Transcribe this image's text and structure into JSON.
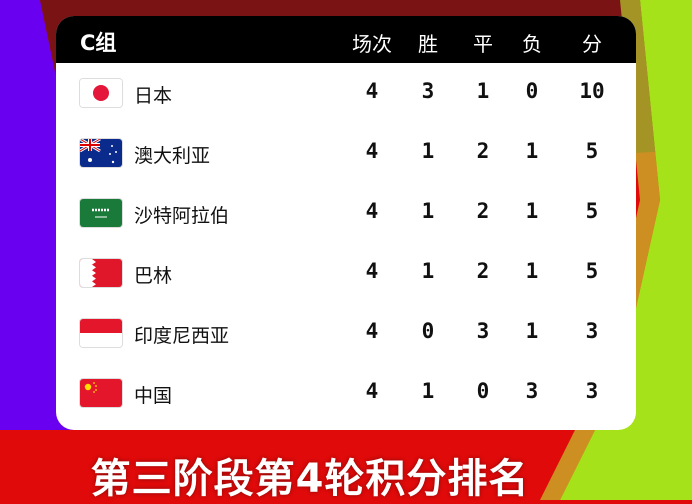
{
  "colors": {
    "purple": "#6a00f0",
    "dark_red": "#7a1414",
    "red": "#e00a0a",
    "green": "#a6e21a"
  },
  "header": {
    "group": "C组",
    "columns": [
      "场次",
      "胜",
      "平",
      "负",
      "分"
    ]
  },
  "rows": [
    {
      "flag": "japan-flag",
      "team": "日本",
      "played": "4",
      "won": "3",
      "drawn": "1",
      "lost": "0",
      "points": "10"
    },
    {
      "flag": "australia-flag",
      "team": "澳大利亚",
      "played": "4",
      "won": "1",
      "drawn": "2",
      "lost": "1",
      "points": "5"
    },
    {
      "flag": "saudi-arabia-flag",
      "team": "沙特阿拉伯",
      "played": "4",
      "won": "1",
      "drawn": "2",
      "lost": "1",
      "points": "5"
    },
    {
      "flag": "bahrain-flag",
      "team": "巴林",
      "played": "4",
      "won": "1",
      "drawn": "2",
      "lost": "1",
      "points": "5"
    },
    {
      "flag": "indonesia-flag",
      "team": "印度尼西亚",
      "played": "4",
      "won": "0",
      "drawn": "3",
      "lost": "1",
      "points": "3"
    },
    {
      "flag": "china-flag",
      "team": "中国",
      "played": "4",
      "won": "1",
      "drawn": "0",
      "lost": "3",
      "points": "3"
    }
  ],
  "caption": "第三阶段第4轮积分排名"
}
